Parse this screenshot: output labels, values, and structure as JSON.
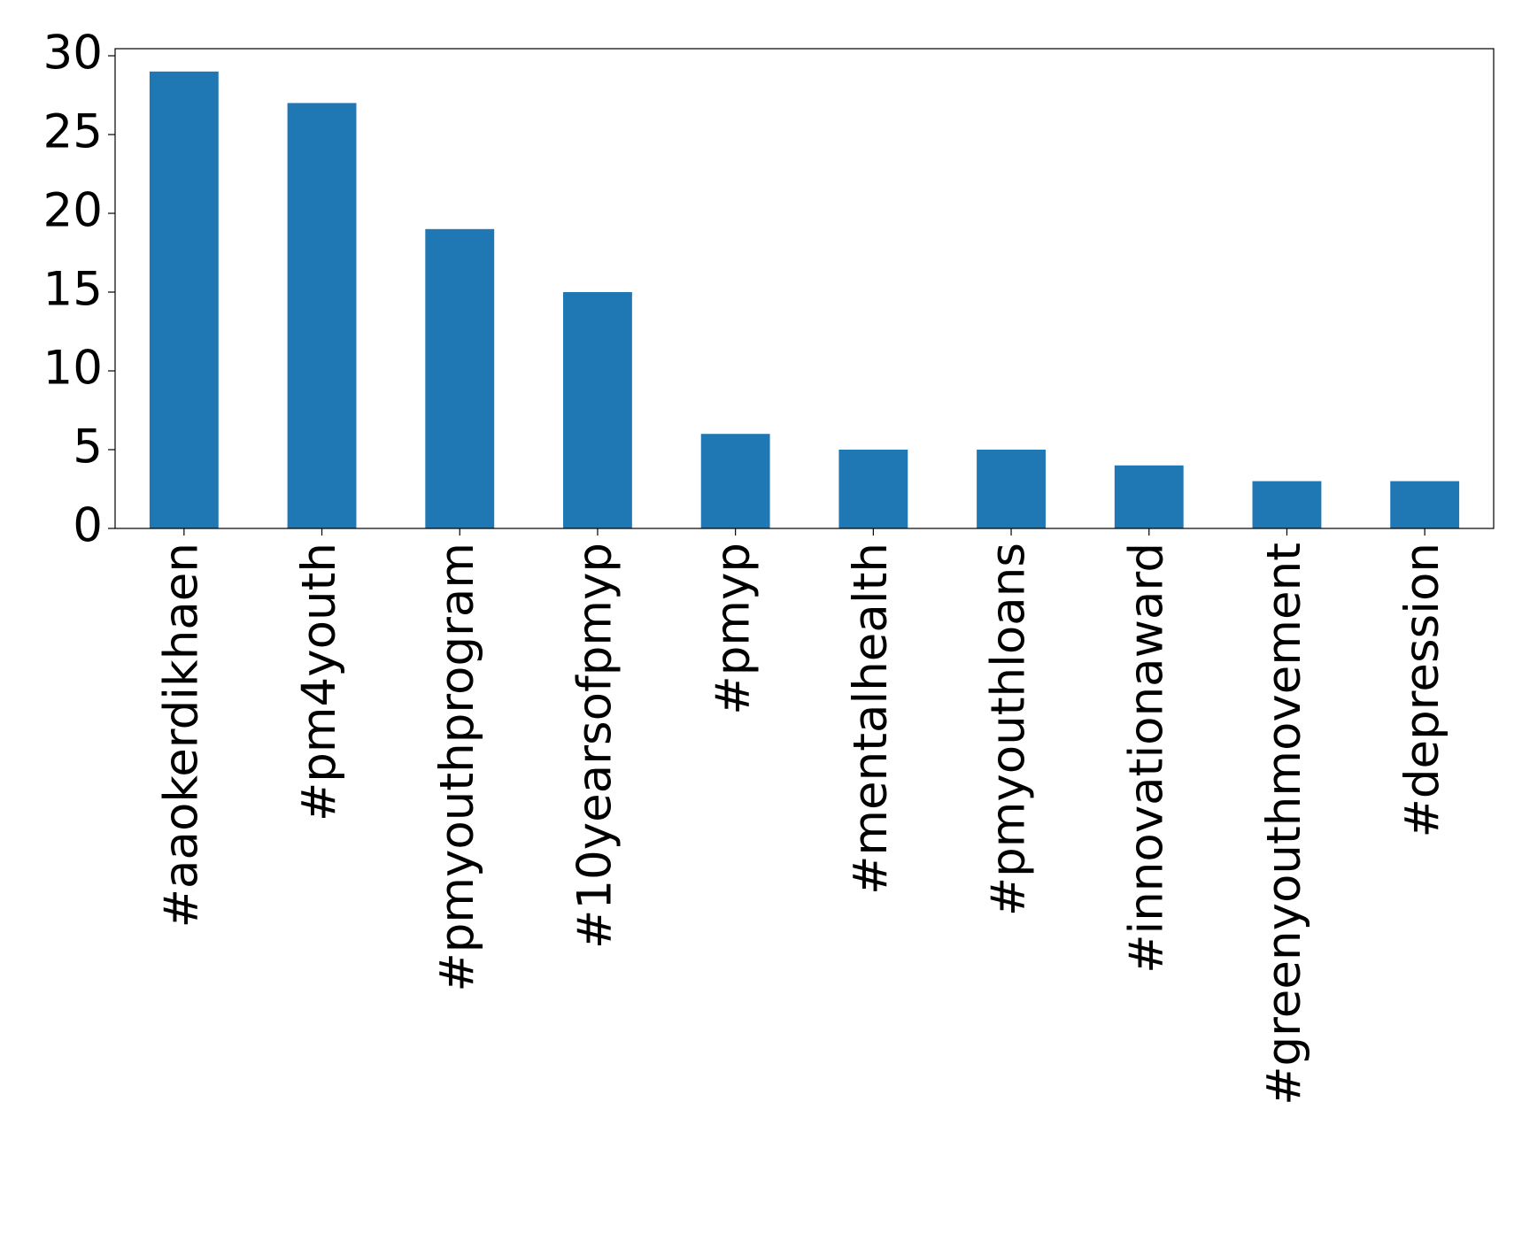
{
  "chart_data": {
    "type": "bar",
    "categories": [
      "#aaokerdikhaen",
      "#pm4youth",
      "#pmyouthprogram",
      "#10yearsofpmyp",
      "#pmyp",
      "#mentalhealth",
      "#pmyouthloans",
      "#innovationaward",
      "#greenyouthmovement",
      "#depression"
    ],
    "values": [
      29,
      27,
      19,
      15,
      6,
      5,
      5,
      4,
      3,
      3
    ],
    "color": "#1f77b4",
    "ylim": [
      0,
      30.45
    ],
    "yticks": [
      0,
      5,
      10,
      15,
      20,
      25,
      30
    ],
    "grid": false
  }
}
